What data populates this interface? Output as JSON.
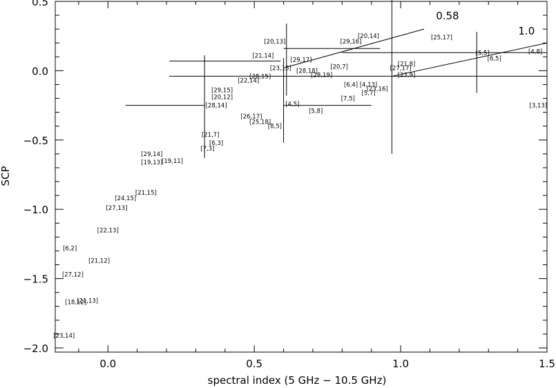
{
  "chart_data": {
    "type": "scatter",
    "title": "",
    "xlabel": "spectral index (5 GHz − 10.5 GHz)",
    "ylabel": "SCP",
    "xlim": [
      -0.18,
      1.5
    ],
    "ylim": [
      -2.03,
      0.5
    ],
    "x_ticks": [
      0.0,
      0.5,
      1.0,
      1.5
    ],
    "x_tick_labels": [
      "0.0",
      "0.5",
      "1.0",
      "1.5"
    ],
    "y_ticks": [
      -2.0,
      -1.5,
      -1.0,
      -0.5,
      0.0,
      0.5
    ],
    "y_tick_labels": [
      "−2.0",
      "−1.5",
      "−1.0",
      "−0.5",
      "0.0",
      "0.5"
    ],
    "grid": false,
    "points": [
      {
        "label": "[20,13]",
        "x": 0.57,
        "y": 0.21
      },
      {
        "label": "[29,16]",
        "x": 0.83,
        "y": 0.21
      },
      {
        "label": "[20,14]",
        "x": 0.89,
        "y": 0.25
      },
      {
        "label": "[25,17]",
        "x": 1.14,
        "y": 0.24
      },
      {
        "label": "[21,14]",
        "x": 0.53,
        "y": 0.11
      },
      {
        "label": "[27,17]",
        "x": 1.0,
        "y": 0.02
      },
      {
        "label": "[21,8]",
        "x": 1.02,
        "y": 0.05
      },
      {
        "label": "[23,9]",
        "x": 1.02,
        "y": -0.03
      },
      {
        "label": "[5,5]",
        "x": 1.28,
        "y": 0.13
      },
      {
        "label": "[6,5]",
        "x": 1.32,
        "y": 0.09
      },
      {
        "label": "[4,8]",
        "x": 1.46,
        "y": 0.14
      },
      {
        "label": "[3,13]",
        "x": 1.47,
        "y": -0.25
      },
      {
        "label": "[29,17]",
        "x": 0.66,
        "y": 0.08
      },
      {
        "label": "[23,15]",
        "x": 0.59,
        "y": 0.02
      },
      {
        "label": "[28,18]",
        "x": 0.68,
        "y": 0.0
      },
      {
        "label": "[28,19]",
        "x": 0.73,
        "y": -0.03
      },
      {
        "label": "[20,7]",
        "x": 0.79,
        "y": 0.03
      },
      {
        "label": "[22,14]",
        "x": 0.48,
        "y": -0.07
      },
      {
        "label": "[28,15]",
        "x": 0.52,
        "y": -0.04
      },
      {
        "label": "[6,4]",
        "x": 0.83,
        "y": -0.1
      },
      {
        "label": "[4,13]",
        "x": 0.89,
        "y": -0.1
      },
      {
        "label": "[23,16]",
        "x": 0.92,
        "y": -0.13
      },
      {
        "label": "[5,7]",
        "x": 0.89,
        "y": -0.16
      },
      {
        "label": "[7,5]",
        "x": 0.82,
        "y": -0.2
      },
      {
        "label": "[29,15]",
        "x": 0.39,
        "y": -0.14
      },
      {
        "label": "[20,12]",
        "x": 0.39,
        "y": -0.19
      },
      {
        "label": "[28,14]",
        "x": 0.37,
        "y": -0.25
      },
      {
        "label": "[4,5]",
        "x": 0.63,
        "y": -0.24
      },
      {
        "label": "[5,8]",
        "x": 0.71,
        "y": -0.29
      },
      {
        "label": "[26,17]",
        "x": 0.49,
        "y": -0.33
      },
      {
        "label": "[25,18]",
        "x": 0.52,
        "y": -0.37
      },
      {
        "label": "[8,5]",
        "x": 0.57,
        "y": -0.4
      },
      {
        "label": "[21,7]",
        "x": 0.35,
        "y": -0.46
      },
      {
        "label": "[6,3]",
        "x": 0.37,
        "y": -0.52
      },
      {
        "label": "[7,3]",
        "x": 0.34,
        "y": -0.56
      },
      {
        "label": "[29,14]",
        "x": 0.15,
        "y": -0.6
      },
      {
        "label": "[19,13]",
        "x": 0.15,
        "y": -0.66
      },
      {
        "label": "[19,11]",
        "x": 0.22,
        "y": -0.65
      },
      {
        "label": "[21,15]",
        "x": 0.13,
        "y": -0.88
      },
      {
        "label": "[24,15]",
        "x": 0.06,
        "y": -0.92
      },
      {
        "label": "[27,13]",
        "x": 0.03,
        "y": -0.99
      },
      {
        "label": "[22,13]",
        "x": 0.0,
        "y": -1.15
      },
      {
        "label": "[6,2]",
        "x": -0.13,
        "y": -1.28
      },
      {
        "label": "[21,12]",
        "x": -0.03,
        "y": -1.37
      },
      {
        "label": "[27,12]",
        "x": -0.12,
        "y": -1.47
      },
      {
        "label": "[18,12]",
        "x": -0.11,
        "y": -1.67
      },
      {
        "label": "[21,13]",
        "x": -0.07,
        "y": -1.66
      },
      {
        "label": "[23,14]",
        "x": -0.15,
        "y": -1.91
      }
    ],
    "error_bars": [
      {
        "x": 0.33,
        "y": -0.25,
        "xerr": [
          0.27,
          0.0
        ],
        "yerr": [
          0.38,
          0.36
        ]
      },
      {
        "x": 0.6,
        "y": -0.25,
        "xerr": [
          0.0,
          0.3
        ],
        "yerr": [
          0.27,
          0.34
        ]
      },
      {
        "x": 0.77,
        "y": 0.16,
        "xerr": [
          0.17,
          0.16
        ],
        "yerr": [
          0.0,
          0.0
        ]
      },
      {
        "x": 0.59,
        "y": 0.07,
        "xerr": [
          0.38,
          0.0
        ],
        "yerr": [
          0.0,
          0.0
        ]
      },
      {
        "x": 0.61,
        "y": 0.02,
        "xerr": [
          0.0,
          0.0
        ],
        "yerr": [
          0.2,
          0.32
        ]
      },
      {
        "x": 0.97,
        "y": 0.13,
        "xerr": [
          0.0,
          0.0
        ],
        "yerr": [
          0.73,
          0.57
        ]
      },
      {
        "x": 0.97,
        "y": -0.04,
        "xerr": [
          0.76,
          0.53
        ],
        "yerr": [
          0.0,
          0.0
        ]
      },
      {
        "x": 1.26,
        "y": 0.12,
        "xerr": [
          0.0,
          0.0
        ],
        "yerr": [
          0.28,
          0.16
        ]
      },
      {
        "x": 1.26,
        "y": 0.13,
        "xerr": [
          0.46,
          0.24
        ],
        "yerr": [
          0.0,
          0.0
        ]
      }
    ],
    "lines": [
      {
        "label": "0.58",
        "points": [
          [
            0.6,
            0.02
          ],
          [
            1.08,
            0.3
          ]
        ]
      },
      {
        "label": "1.0",
        "points": [
          [
            0.97,
            -0.04
          ],
          [
            1.5,
            0.2
          ]
        ]
      }
    ],
    "line_annotations": [
      {
        "text": "0.58",
        "x": 1.16,
        "y": 0.37
      },
      {
        "text": "1.0",
        "x": 1.43,
        "y": 0.26
      }
    ]
  }
}
